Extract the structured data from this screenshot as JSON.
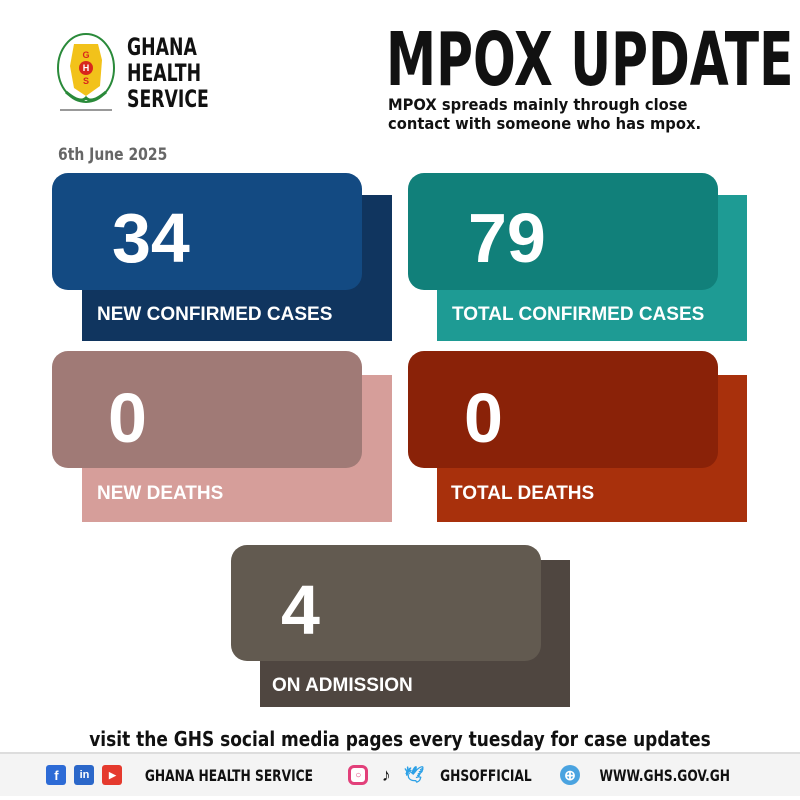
{
  "logo": {
    "ring_text": "GHANA HEALTH SERVICE",
    "initials": "GHS",
    "motto": "Your Health-Our Concern"
  },
  "org_name": [
    "GHANA",
    "HEALTH",
    "SERVICE"
  ],
  "title": "MPOX UPDATE",
  "subtitle_lines": [
    "MPOX spreads mainly through close",
    "contact with someone who has mpox."
  ],
  "date": "6th June 2025",
  "stats": [
    {
      "value": "34",
      "label": "NEW CONFIRMED CASES",
      "front_color": "#134a82",
      "back_color": "#10355f"
    },
    {
      "value": "79",
      "label": "TOTAL CONFIRMED CASES",
      "front_color": "#11807a",
      "back_color": "#1e9b94"
    },
    {
      "value": "0",
      "label": "NEW DEATHS",
      "front_color": "#a07a76",
      "back_color": "#d69e9a"
    },
    {
      "value": "0",
      "label": "TOTAL DEATHS",
      "front_color": "#8a2208",
      "back_color": "#a8300c"
    },
    {
      "value": "4",
      "label": "ON ADMISSION",
      "front_color": "#625a50",
      "back_color": "#4f4640"
    }
  ],
  "notice": "visit the GHS social media pages every tuesday for case updates",
  "footer": {
    "icons1": [
      "facebook-icon",
      "linkedin-icon",
      "youtube-icon"
    ],
    "handle1": "GHANA HEALTH SERVICE",
    "icons2": [
      "instagram-icon",
      "tiktok-icon",
      "twitter-icon"
    ],
    "handle2": "GHSOFFICIAL",
    "icons3": [
      "globe-icon"
    ],
    "website": "WWW.GHS.GOV.GH"
  }
}
